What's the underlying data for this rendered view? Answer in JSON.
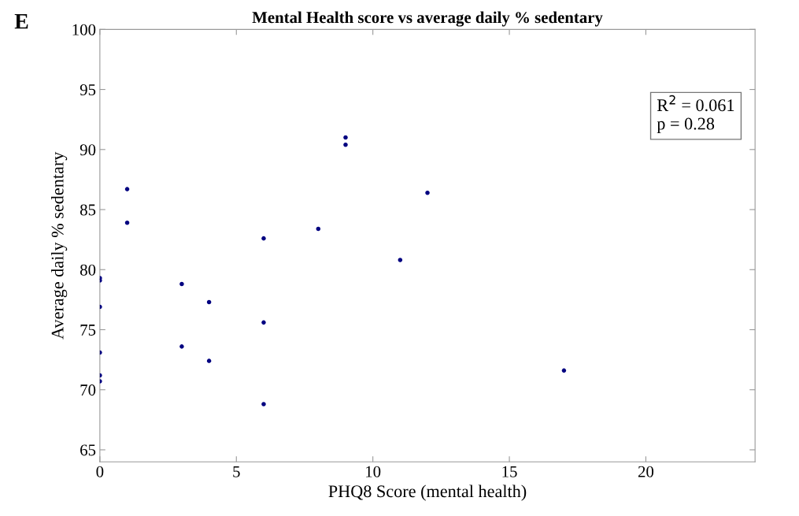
{
  "chart_data": {
    "type": "scatter",
    "title": "Mental Health score vs average daily % sedentary",
    "xlabel": "PHQ8 Score (mental health)",
    "ylabel": "Average daily % sedentary",
    "x": [
      0,
      0,
      0,
      0,
      0,
      0,
      1,
      1,
      3,
      3,
      4,
      4,
      6,
      6,
      6,
      8,
      9,
      9,
      11,
      12,
      17
    ],
    "series": [
      {
        "color": "#000080",
        "values": [
          79.3,
          79.1,
          76.9,
          73.1,
          71.2,
          70.7,
          86.7,
          83.9,
          78.8,
          73.6,
          77.3,
          72.4,
          82.6,
          75.6,
          68.8,
          83.4,
          91.0,
          90.4,
          80.8,
          86.4,
          71.6
        ]
      }
    ],
    "xlim": [
      0,
      24
    ],
    "xticks": [
      0,
      5,
      10,
      15,
      20
    ],
    "ylim": [
      64,
      100
    ],
    "yticks": [
      65,
      70,
      75,
      80,
      85,
      90,
      95,
      100
    ],
    "grid": false,
    "legend": false,
    "marker": "circle",
    "annotations": [
      "E",
      "R$^{2}$ = 0.061\np = 0.28"
    ]
  }
}
